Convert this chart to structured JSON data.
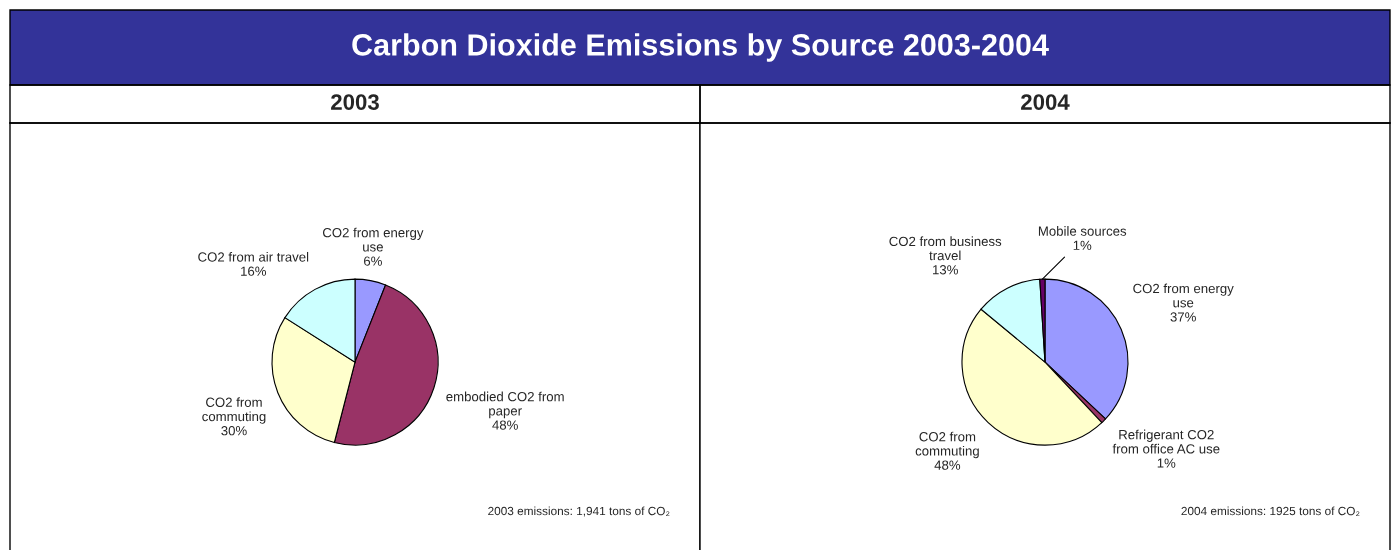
{
  "chart_data": [
    {
      "type": "pie",
      "title": "Carbon Dioxide Emissions by Source 2003-2004",
      "subtitle": "2003",
      "categories": [
        "CO2 from energy\nuse",
        "embodied CO2 from\npaper",
        "CO2 from\ncommuting",
        "CO2 from air travel"
      ],
      "values": [
        6,
        48,
        30,
        16
      ],
      "value_labels": [
        "6%",
        "48%",
        "30%",
        "16%"
      ],
      "colors": [
        "#9999ff",
        "#993366",
        "#ffffcc",
        "#ccffff"
      ],
      "annotations": [
        "2003 emissions: 1,941 tons of CO₂"
      ]
    },
    {
      "type": "pie",
      "subtitle": "2004",
      "categories": [
        "CO2 from energy\nuse",
        "Refrigerant CO2\nfrom office AC use",
        "CO2 from\ncommuting",
        "CO2 from business\ntravel",
        "Mobile sources"
      ],
      "values": [
        37,
        1,
        48,
        13,
        1
      ],
      "value_labels": [
        "37%",
        "1%",
        "48%",
        "13%",
        "1%"
      ],
      "colors": [
        "#9999ff",
        "#993366",
        "#ffffcc",
        "#ccffff",
        "#660066"
      ],
      "annotations": [
        "2004 emissions: 1925 tons of CO₂"
      ]
    }
  ]
}
